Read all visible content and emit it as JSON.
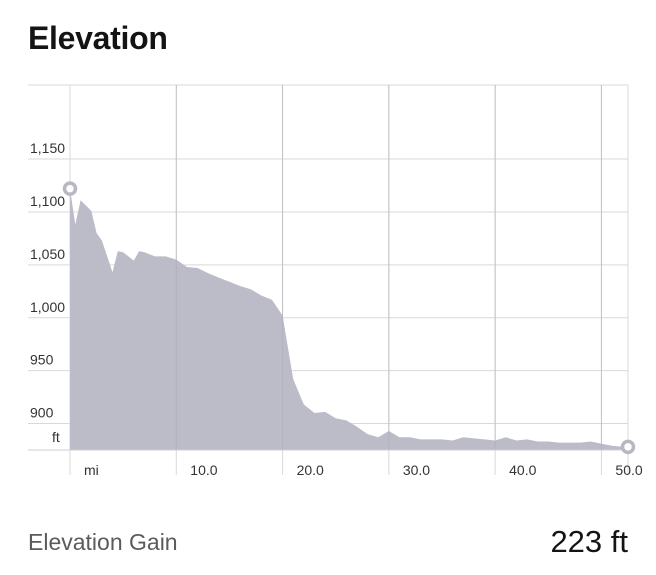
{
  "title": "Elevation",
  "summary": {
    "label": "Elevation Gain",
    "value": "223 ft"
  },
  "colors": {
    "fill": "#bcbbc8",
    "grid": "#d9d9d9",
    "text": "#333333",
    "marker": "#b8b7c2"
  },
  "chart_data": {
    "type": "area",
    "xunit": "mi",
    "yunit": "ft",
    "xlim": [
      0,
      52.5
    ],
    "ylim": [
      875,
      1220
    ],
    "xticks": [
      10,
      20,
      30,
      40,
      50
    ],
    "xtick_labels": [
      "10.0",
      "20.0",
      "30.0",
      "40.0",
      "50.0"
    ],
    "yticks": [
      900,
      950,
      1000,
      1050,
      1100,
      1150
    ],
    "ytick_labels": [
      "900",
      "950",
      "1,000",
      "1,050",
      "1,100",
      "1,150"
    ],
    "grid": true,
    "series": [
      {
        "x": [
          0,
          0.5,
          1,
          2,
          2.5,
          3,
          4,
          4.5,
          5,
          6,
          6.5,
          7,
          8,
          9,
          10,
          11,
          12,
          13,
          14,
          15,
          16,
          17,
          18,
          19,
          20,
          21,
          22,
          23,
          24,
          25,
          26,
          27,
          28,
          29,
          30,
          31,
          32,
          33,
          34,
          35,
          36,
          37,
          38,
          39,
          40,
          41,
          42,
          43,
          44,
          45,
          46,
          47,
          48,
          49,
          50,
          51,
          52,
          52.5
        ],
        "y": [
          1122,
          1088,
          1111,
          1101,
          1080,
          1073,
          1043,
          1063,
          1062,
          1054,
          1063,
          1062,
          1058,
          1058,
          1055,
          1048,
          1047,
          1042,
          1038,
          1034,
          1030,
          1027,
          1021,
          1017,
          1002,
          942,
          918,
          910,
          911,
          905,
          903,
          897,
          890,
          887,
          893,
          887,
          887,
          885,
          885,
          885,
          884,
          887,
          886,
          885,
          884,
          887,
          884,
          885,
          883,
          883,
          882,
          882,
          882,
          883,
          881,
          879,
          878,
          878
        ]
      }
    ]
  }
}
